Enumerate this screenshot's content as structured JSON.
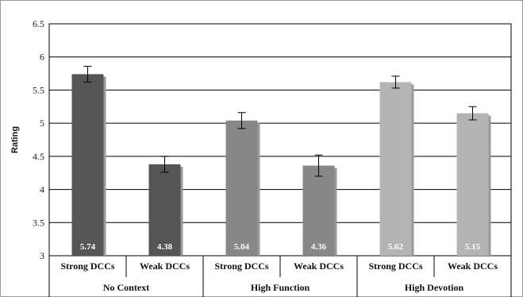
{
  "chart_data": {
    "type": "bar",
    "title": "",
    "ylabel": "Rating",
    "xlabel": "",
    "ylim": [
      3,
      6.5
    ],
    "yticks": [
      "3",
      "3.5",
      "4",
      "4.5",
      "5",
      "5.5",
      "6",
      "6.5"
    ],
    "grid": true,
    "legend": "none",
    "categories": [
      "Strong DCCs",
      "Weak DCCs",
      "Strong DCCs",
      "Weak DCCs",
      "Strong DCCs",
      "Weak DCCs"
    ],
    "groups": [
      "No Context",
      "High Function",
      "High Devotion"
    ],
    "values": [
      5.74,
      4.38,
      5.04,
      4.36,
      5.62,
      5.15
    ],
    "value_labels": [
      "5.74",
      "4.38",
      "5.04",
      "4.36",
      "5.62",
      "5.15"
    ],
    "error": [
      0.12,
      0.12,
      0.12,
      0.16,
      0.09,
      0.1
    ],
    "colors": [
      "#555555",
      "#555555",
      "#878787",
      "#878787",
      "#b4b4b4",
      "#b4b4b4"
    ]
  }
}
